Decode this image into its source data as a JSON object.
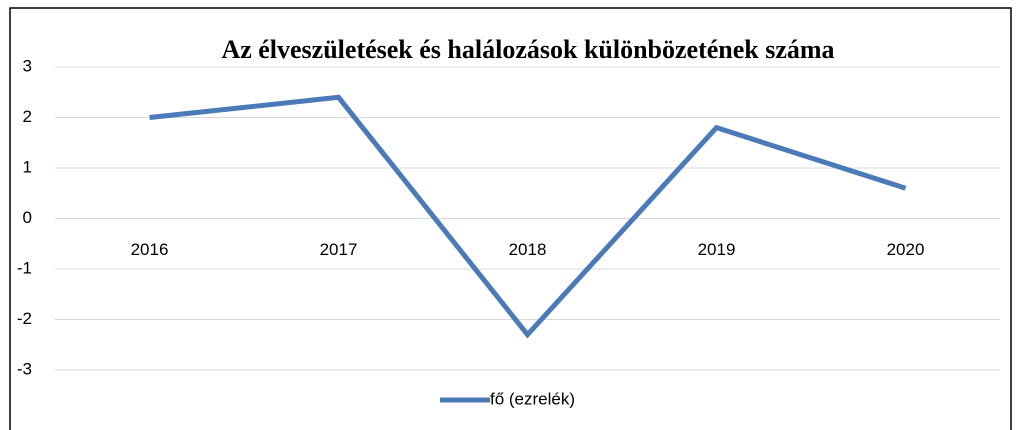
{
  "chart_data": {
    "type": "line",
    "title": "Az élveszületések és halálozások különbözetének száma",
    "categories": [
      "2016",
      "2017",
      "2018",
      "2019",
      "2020"
    ],
    "series": [
      {
        "name": "fő (ezrelék)",
        "color": "#4a7ab8",
        "values": [
          2,
          2.4,
          -2.3,
          1.8,
          0.6
        ]
      }
    ],
    "ylim": [
      -3,
      3
    ],
    "yticks": [
      -3,
      -2,
      -1,
      0,
      1,
      2,
      3
    ],
    "grid": true,
    "legend": "bottom"
  }
}
